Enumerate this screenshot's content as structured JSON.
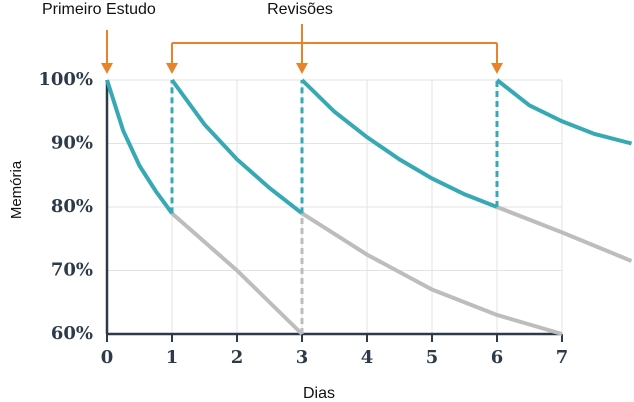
{
  "chart_data": {
    "type": "line",
    "xlabel": "Dias",
    "ylabel": "Memória",
    "xlim": [
      0,
      7
    ],
    "ylim": [
      60,
      100
    ],
    "xticks": [
      0,
      1,
      2,
      3,
      4,
      5,
      6,
      7
    ],
    "yticks": [
      {
        "value": 60,
        "label": "60%"
      },
      {
        "value": 70,
        "label": "70%"
      },
      {
        "value": 80,
        "label": "80%"
      },
      {
        "value": 90,
        "label": "90%"
      },
      {
        "value": 100,
        "label": "100%"
      }
    ],
    "grid": true,
    "series": [
      {
        "color": "#37a9b4",
        "x": [
          0,
          0.25,
          0.5,
          0.75,
          1
        ],
        "values": [
          100,
          92,
          86.5,
          82.5,
          79
        ]
      },
      {
        "color": "#37a9b4",
        "x": [
          1,
          1.5,
          2,
          2.5,
          3
        ],
        "values": [
          100,
          93,
          87.5,
          83,
          79
        ]
      },
      {
        "color": "#37a9b4",
        "x": [
          3,
          3.5,
          4,
          4.5,
          5,
          5.5,
          6
        ],
        "values": [
          100,
          95,
          91,
          87.5,
          84.5,
          82,
          80
        ]
      },
      {
        "color": "#37a9b4",
        "x": [
          6,
          6.5,
          7,
          7.5,
          8.07
        ],
        "values": [
          100,
          96,
          93.5,
          91.5,
          90
        ]
      },
      {
        "color": "#bdbdbd",
        "x": [
          1,
          1.5,
          2,
          2.5,
          3
        ],
        "values": [
          79,
          74.5,
          70,
          65,
          60
        ]
      },
      {
        "color": "#bdbdbd",
        "x": [
          3,
          4,
          5,
          6,
          7
        ],
        "values": [
          79,
          72.5,
          67,
          63,
          60
        ]
      },
      {
        "color": "#bdbdbd",
        "x": [
          6,
          7,
          8.07
        ],
        "values": [
          80,
          76,
          71.5
        ]
      }
    ],
    "annotations": [
      {
        "text": "Primeiro Estudo",
        "x": [
          0
        ]
      },
      {
        "text": "Revisões",
        "x": [
          1,
          3,
          6
        ]
      }
    ]
  }
}
